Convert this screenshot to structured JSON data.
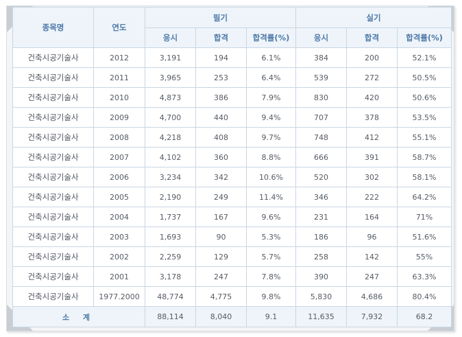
{
  "headers": {
    "subject": "종목명",
    "year": "연도",
    "written": "필기",
    "practical": "실기",
    "applicants": "응시",
    "passed": "합격",
    "pass_rate": "합격률(%)"
  },
  "rows": [
    {
      "subject": "건축시공기술사",
      "year": "2012",
      "w_app": "3,191",
      "w_pass": "194",
      "w_rate": "6.1%",
      "p_app": "384",
      "p_pass": "200",
      "p_rate": "52.1%"
    },
    {
      "subject": "건축시공기술사",
      "year": "2011",
      "w_app": "3,965",
      "w_pass": "253",
      "w_rate": "6.4%",
      "p_app": "539",
      "p_pass": "272",
      "p_rate": "50.5%"
    },
    {
      "subject": "건축시공기술사",
      "year": "2010",
      "w_app": "4,873",
      "w_pass": "386",
      "w_rate": "7.9%",
      "p_app": "830",
      "p_pass": "420",
      "p_rate": "50.6%"
    },
    {
      "subject": "건축시공기술사",
      "year": "2009",
      "w_app": "4,700",
      "w_pass": "440",
      "w_rate": "9.4%",
      "p_app": "707",
      "p_pass": "378",
      "p_rate": "53.5%"
    },
    {
      "subject": "건축시공기술사",
      "year": "2008",
      "w_app": "4,218",
      "w_pass": "408",
      "w_rate": "9.7%",
      "p_app": "748",
      "p_pass": "412",
      "p_rate": "55.1%"
    },
    {
      "subject": "건축시공기술사",
      "year": "2007",
      "w_app": "4,102",
      "w_pass": "360",
      "w_rate": "8.8%",
      "p_app": "666",
      "p_pass": "391",
      "p_rate": "58.7%"
    },
    {
      "subject": "건축시공기술사",
      "year": "2006",
      "w_app": "3,234",
      "w_pass": "342",
      "w_rate": "10.6%",
      "p_app": "520",
      "p_pass": "302",
      "p_rate": "58.1%"
    },
    {
      "subject": "건축시공기술사",
      "year": "2005",
      "w_app": "2,190",
      "w_pass": "249",
      "w_rate": "11.4%",
      "p_app": "346",
      "p_pass": "222",
      "p_rate": "64.2%"
    },
    {
      "subject": "건축시공기술사",
      "year": "2004",
      "w_app": "1,737",
      "w_pass": "167",
      "w_rate": "9.6%",
      "p_app": "231",
      "p_pass": "164",
      "p_rate": "71%"
    },
    {
      "subject": "건축시공기술사",
      "year": "2003",
      "w_app": "1,693",
      "w_pass": "90",
      "w_rate": "5.3%",
      "p_app": "186",
      "p_pass": "96",
      "p_rate": "51.6%"
    },
    {
      "subject": "건축시공기술사",
      "year": "2002",
      "w_app": "2,259",
      "w_pass": "129",
      "w_rate": "5.7%",
      "p_app": "258",
      "p_pass": "142",
      "p_rate": "55%"
    },
    {
      "subject": "건축시공기술사",
      "year": "2001",
      "w_app": "3,178",
      "w_pass": "247",
      "w_rate": "7.8%",
      "p_app": "390",
      "p_pass": "247",
      "p_rate": "63.3%"
    },
    {
      "subject": "건축시공기술사",
      "year": "1977.2000",
      "w_app": "48,774",
      "w_pass": "4,775",
      "w_rate": "9.8%",
      "p_app": "5,830",
      "p_pass": "4,686",
      "p_rate": "80.4%"
    }
  ],
  "total": {
    "label": "소 계",
    "w_app": "88,114",
    "w_pass": "8,040",
    "w_rate": "9.1",
    "p_app": "11,635",
    "p_pass": "7,932",
    "p_rate": "68.2"
  },
  "colors": {
    "header_bg": "#eef4fa",
    "header_text": "#4f79a8",
    "border": "#c9d6e4",
    "frame_bg": "#f4f5f6"
  }
}
